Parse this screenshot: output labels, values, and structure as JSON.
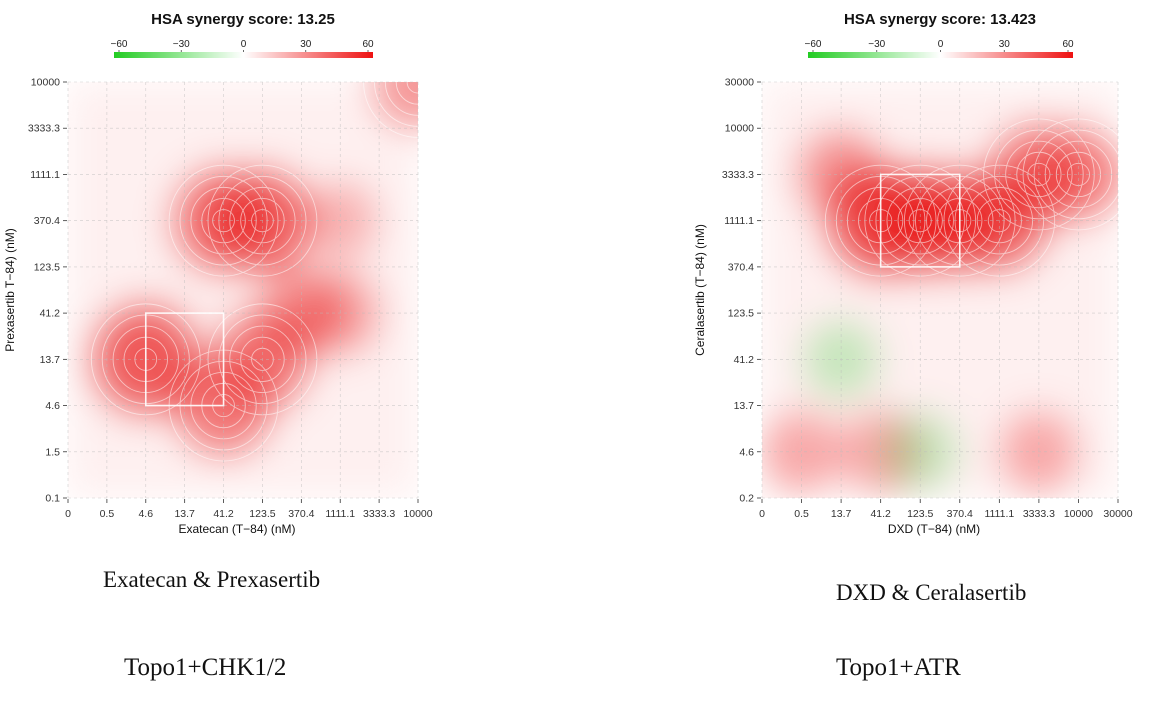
{
  "legend": {
    "ticks": [
      "−60",
      "−30",
      "0",
      "30",
      "60"
    ],
    "colors": {
      "negative": "#22cc22",
      "zero": "#ffffff",
      "positive": "#ee1111"
    }
  },
  "chart_data": [
    {
      "type": "heatmap",
      "title": "HSA synergy score: 13.25",
      "xlabel": "Exatecan (T−84) (nM)",
      "ylabel": "Prexasertib T−84) (nM)",
      "x_ticks": [
        "0",
        "0.5",
        "4.6",
        "13.7",
        "41.2",
        "123.5",
        "370.4",
        "1111.1",
        "3333.3",
        "10000"
      ],
      "y_ticks": [
        "0.1",
        "1.5",
        "4.6",
        "13.7",
        "41.2",
        "123.5",
        "370.4",
        "1111.1",
        "3333.3",
        "10000"
      ],
      "legend_range": [
        -60,
        60
      ],
      "grid": true,
      "contours": true,
      "highlight_box": {
        "x": [
          "4.6",
          "41.2"
        ],
        "y": [
          "4.6",
          "41.2"
        ]
      },
      "hotspots": [
        {
          "x": "4.6",
          "y": "13.7",
          "score": 55
        },
        {
          "x": "41.2",
          "y": "4.6",
          "score": 40
        },
        {
          "x": "123.5",
          "y": "13.7",
          "score": 38
        },
        {
          "x": "41.2",
          "y": "370.4",
          "score": 45
        },
        {
          "x": "123.5",
          "y": "370.4",
          "score": 45
        },
        {
          "x": "370.4",
          "y": "41.2",
          "score": 25
        },
        {
          "x": "1111.1",
          "y": "41.2",
          "score": 18
        },
        {
          "x": "1111.1",
          "y": "370.4",
          "score": 10
        },
        {
          "x": "10000",
          "y": "10000",
          "score": 30
        }
      ],
      "caption": "Exatecan  & Prexasertib",
      "subcaption": "Topo1+CHK1/2"
    },
    {
      "type": "heatmap",
      "title": "HSA synergy score: 13.423",
      "xlabel": "DXD (T−84) (nM)",
      "ylabel": "Ceralasertib (T−84) (nM)",
      "x_ticks": [
        "0",
        "0.5",
        "13.7",
        "41.2",
        "123.5",
        "370.4",
        "1111.1",
        "3333.3",
        "10000",
        "30000"
      ],
      "y_ticks": [
        "0.2",
        "4.6",
        "13.7",
        "41.2",
        "123.5",
        "370.4",
        "1111.1",
        "3333.3",
        "10000",
        "30000"
      ],
      "legend_range": [
        -60,
        60
      ],
      "grid": true,
      "contours": true,
      "highlight_box": {
        "x": [
          "41.2",
          "370.4"
        ],
        "y": [
          "370.4",
          "3333.3"
        ]
      },
      "hotspots": [
        {
          "x": "41.2",
          "y": "1111.1",
          "score": 55
        },
        {
          "x": "123.5",
          "y": "1111.1",
          "score": 50
        },
        {
          "x": "370.4",
          "y": "1111.1",
          "score": 45
        },
        {
          "x": "1111.1",
          "y": "1111.1",
          "score": 42
        },
        {
          "x": "3333.3",
          "y": "3333.3",
          "score": 40
        },
        {
          "x": "10000",
          "y": "3333.3",
          "score": 30
        },
        {
          "x": "13.7",
          "y": "3333.3",
          "score": 25
        },
        {
          "x": "0.5",
          "y": "4.6",
          "score": 15
        },
        {
          "x": "41.2",
          "y": "4.6",
          "score": 15
        },
        {
          "x": "3333.3",
          "y": "4.6",
          "score": 15
        },
        {
          "x": "123.5",
          "y": "4.6",
          "score": -10
        },
        {
          "x": "13.7",
          "y": "41.2",
          "score": -10
        }
      ],
      "caption": "DXD & Ceralasertib",
      "subcaption": "Topo1+ATR"
    }
  ]
}
